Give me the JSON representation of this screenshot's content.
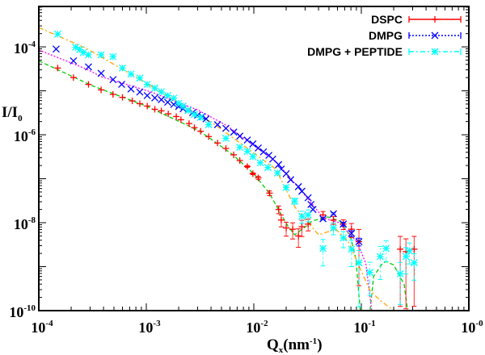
{
  "chart_data": {
    "type": "scatter",
    "title": "",
    "xlabel": {
      "main": "Q",
      "sub": "x",
      "unit_open": "(nm",
      "unit_exp": "-1",
      "unit_close": ")"
    },
    "ylabel": {
      "main": "I/I",
      "sub": "0"
    },
    "xscale": "log",
    "yscale": "log",
    "xlim": [
      0.0001,
      1
    ],
    "ylim": [
      1e-10,
      0.00083
    ],
    "grid": false,
    "legend_position": "top-right",
    "x_ticks": [
      {
        "base": "10",
        "exp": "-4",
        "value": 0.0001
      },
      {
        "base": "10",
        "exp": "-3",
        "value": 0.001
      },
      {
        "base": "10",
        "exp": "-2",
        "value": 0.01
      },
      {
        "base": "10",
        "exp": "-1",
        "value": 0.1
      },
      {
        "base": "10",
        "exp": "-0",
        "value": 1
      }
    ],
    "y_ticks": [
      {
        "base": "10",
        "exp": "-4",
        "value": 0.0001
      },
      {
        "base": "10",
        "exp": "-6",
        "value": 1e-06
      },
      {
        "base": "10",
        "exp": "-8",
        "value": 1e-08
      },
      {
        "base": "10",
        "exp": "-10",
        "value": 1e-10
      }
    ],
    "point_format": "[Q, I, relative_error]",
    "series": [
      {
        "name": "DSPC",
        "color": "#ff0000",
        "marker": "plus",
        "line_style": "solid",
        "points": [
          [
            0.00015,
            3.3e-05,
            0
          ],
          [
            0.00021,
            2e-05,
            0
          ],
          [
            0.00029,
            1.4e-05,
            0
          ],
          [
            0.00038,
            1.05e-05,
            0
          ],
          [
            0.00049,
            8.3e-06,
            0
          ],
          [
            0.0006,
            7.1e-06,
            0
          ],
          [
            0.00074,
            5.9e-06,
            0
          ],
          [
            0.00087,
            5.1e-06,
            0
          ],
          [
            0.00102,
            4.5e-06,
            0
          ],
          [
            0.0012,
            3.8e-06,
            0
          ],
          [
            0.00138,
            3.5e-06,
            0
          ],
          [
            0.0016,
            3e-06,
            0
          ],
          [
            0.0019,
            2.6e-06,
            0
          ],
          [
            0.0021,
            2.2e-06,
            0
          ],
          [
            0.0025,
            1.8e-06,
            0
          ],
          [
            0.0028,
            1.45e-06,
            0
          ],
          [
            0.0032,
            1.2e-06,
            0
          ],
          [
            0.0038,
            9.1e-07,
            0
          ],
          [
            0.0046,
            6.5e-07,
            0
          ],
          [
            0.0055,
            4.9e-07,
            0
          ],
          [
            0.0065,
            3.5e-07,
            0
          ],
          [
            0.0074,
            2.6e-07,
            0
          ],
          [
            0.0087,
            1.9e-07,
            0.05
          ],
          [
            0.0098,
            1.3e-07,
            0.05
          ],
          [
            0.011,
            1.05e-07,
            0.08
          ],
          [
            0.014,
            4.7e-08,
            0.12
          ],
          [
            0.017,
            2e-08,
            0.2
          ],
          [
            0.018,
            1.15e-08,
            0.3
          ],
          [
            0.02,
            7.6e-09,
            0.35
          ],
          [
            0.023,
            7.1e-09,
            0.4
          ],
          [
            0.026,
            5e-09,
            0.45
          ],
          [
            0.028,
            8.1e-09,
            0.4
          ],
          [
            0.032,
            9.3e-09,
            0.3
          ],
          [
            0.044,
            1.5e-08,
            0.2
          ],
          [
            0.055,
            1.15e-08,
            0.2
          ],
          [
            0.068,
            9.3e-09,
            0.25
          ],
          [
            0.081,
            7.1e-09,
            0.35
          ],
          [
            0.095,
            3.7e-09,
            0.9
          ],
          [
            0.23,
            2.5e-09,
            0.95
          ],
          [
            0.26,
            2.2e-09,
            0.95
          ],
          [
            0.31,
            2.5e-09,
            0.95
          ]
        ]
      },
      {
        "name": "DMPG",
        "color": "#0000ff",
        "marker": "cross",
        "line_style": "dotted",
        "points": [
          [
            0.000145,
            8.9e-05,
            0
          ],
          [
            0.00021,
            4.8e-05,
            0
          ],
          [
            0.00029,
            3.5e-05,
            0
          ],
          [
            0.00038,
            2.5e-05,
            0
          ],
          [
            0.00049,
            1.8e-05,
            0
          ],
          [
            0.00059,
            1.4e-05,
            0
          ],
          [
            0.00072,
            1.1e-05,
            0
          ],
          [
            0.00087,
            9.4e-06,
            0
          ],
          [
            0.00102,
            7.8e-06,
            0
          ],
          [
            0.0012,
            6.9e-06,
            0
          ],
          [
            0.00138,
            6.3e-06,
            0
          ],
          [
            0.00158,
            5.5e-06,
            0
          ],
          [
            0.0018,
            4.9e-06,
            0
          ],
          [
            0.002,
            4.4e-06,
            0
          ],
          [
            0.0022,
            3.9e-06,
            0
          ],
          [
            0.00245,
            3.6e-06,
            0
          ],
          [
            0.0027,
            3.2e-06,
            0
          ],
          [
            0.003,
            2.8e-06,
            0
          ],
          [
            0.0033,
            2.6e-06,
            0
          ],
          [
            0.0036,
            2.3e-06,
            0
          ],
          [
            0.0046,
            1.7e-06,
            0
          ],
          [
            0.0055,
            1.4e-06,
            0
          ],
          [
            0.0065,
            1.15e-06,
            0
          ],
          [
            0.0074,
            9.3e-07,
            0
          ],
          [
            0.0087,
            7.6e-07,
            0
          ],
          [
            0.0098,
            6.2e-07,
            0
          ],
          [
            0.011,
            5e-07,
            0
          ],
          [
            0.0123,
            4.1e-07,
            0
          ],
          [
            0.0138,
            3.4e-07,
            0
          ],
          [
            0.015,
            2.8e-07,
            0
          ],
          [
            0.017,
            2.1e-07,
            0
          ],
          [
            0.018,
            1.66e-07,
            0
          ],
          [
            0.02,
            1.3e-07,
            0
          ],
          [
            0.022,
            9.5e-08,
            0
          ],
          [
            0.026,
            6.6e-08,
            0
          ],
          [
            0.028,
            5.2e-08,
            0
          ],
          [
            0.032,
            3.7e-08,
            0
          ],
          [
            0.034,
            2.6e-08,
            0
          ],
          [
            0.0355,
            2e-08,
            0
          ],
          [
            0.044,
            1.23e-08,
            0.05
          ],
          [
            0.055,
            1.6e-08,
            0.05
          ],
          [
            0.068,
            9.3e-09,
            0.1
          ],
          [
            0.081,
            5.7e-09,
            0.15
          ],
          [
            0.095,
            3.7e-09,
            0.2
          ]
        ]
      },
      {
        "name": "DMPG + PEPTIDE",
        "color": "#00ffff",
        "marker": "star",
        "line_style": "dash-dot",
        "points": [
          [
            0.00015,
            0.000195,
            0
          ],
          [
            0.00022,
            9.8e-05,
            0
          ],
          [
            0.00024,
            8.7e-05,
            0
          ],
          [
            0.00026,
            7.4e-05,
            0
          ],
          [
            0.00029,
            6.6e-05,
            0
          ],
          [
            0.00038,
            6.6e-05,
            0
          ],
          [
            0.00049,
            6e-05,
            0
          ],
          [
            0.0006,
            3.3e-05,
            0
          ],
          [
            0.00072,
            2.4e-05,
            0
          ],
          [
            0.00087,
            1.95e-05,
            0
          ],
          [
            0.00102,
            1.4e-05,
            0
          ],
          [
            0.0012,
            1.15e-05,
            0
          ],
          [
            0.00138,
            9.5e-06,
            0
          ],
          [
            0.00158,
            7.8e-06,
            0
          ],
          [
            0.0018,
            6.8e-06,
            0
          ],
          [
            0.002,
            5.2e-06,
            0
          ],
          [
            0.0022,
            4.5e-06,
            0
          ],
          [
            0.00245,
            3.6e-06,
            0
          ],
          [
            0.0028,
            2.9e-06,
            0
          ],
          [
            0.0032,
            2.5e-06,
            0
          ],
          [
            0.0038,
            1.7e-06,
            0
          ],
          [
            0.0055,
            8.3e-07,
            0
          ],
          [
            0.0074,
            5.2e-07,
            0
          ],
          [
            0.0087,
            4.2e-07,
            0
          ],
          [
            0.0098,
            3.2e-07,
            0
          ],
          [
            0.0115,
            2.3e-07,
            0
          ],
          [
            0.0135,
            1.8e-07,
            0
          ],
          [
            0.0166,
            1.35e-07,
            0
          ],
          [
            0.02,
            6.3e-08,
            0.1
          ],
          [
            0.024,
            3.1e-08,
            0.15
          ],
          [
            0.028,
            1.4e-08,
            0.3
          ],
          [
            0.032,
            1.5e-08,
            0.3
          ],
          [
            0.044,
            2.6e-09,
            0.6
          ],
          [
            0.055,
            7.6e-09,
            0.3
          ],
          [
            0.068,
            4.5e-09,
            0.4
          ],
          [
            0.081,
            2.5e-09,
            0.6
          ],
          [
            0.095,
            1.23e-09,
            0.9
          ],
          [
            0.12,
            7.4e-10,
            0.7
          ],
          [
            0.15,
            1.7e-09,
            0.7
          ],
          [
            0.17,
            2.6e-09,
            0.5
          ],
          [
            0.23,
            6.9e-10,
            0.8
          ],
          [
            0.26,
            1.7e-09,
            0.6
          ],
          [
            0.28,
            2.3e-09,
            0.5
          ],
          [
            0.31,
            1.23e-09,
            0.6
          ]
        ]
      }
    ],
    "fits": [
      {
        "color": "#00cc00",
        "line_style": "dashed",
        "points": [
          [
            0.0001,
            4.8e-05
          ],
          [
            0.000316,
            1.3e-05
          ],
          [
            0.001,
            4.5e-06
          ],
          [
            0.00316,
            1.2e-06
          ],
          [
            0.0063,
            3.6e-07
          ],
          [
            0.01,
            1.3e-07
          ],
          [
            0.0141,
            4.5e-08
          ],
          [
            0.0178,
            1.6e-08
          ],
          [
            0.021,
            8e-09
          ],
          [
            0.024,
            5.3e-09
          ],
          [
            0.028,
            7e-09
          ],
          [
            0.035,
            1.1e-08
          ],
          [
            0.049,
            1.35e-08
          ],
          [
            0.063,
            1.1e-08
          ],
          [
            0.079,
            5e-09
          ],
          [
            0.089,
            1.5e-09
          ],
          [
            0.1,
            5e-11
          ],
          [
            0.117,
            5e-11
          ],
          [
            0.13,
            6e-10
          ],
          [
            0.158,
            1.2e-09
          ],
          [
            0.17,
            1.3e-09
          ],
          [
            0.2,
            1.1e-09
          ],
          [
            0.25,
            4e-10
          ],
          [
            0.28,
            5e-11
          ]
        ]
      },
      {
        "color": "#ff00ff",
        "line_style": "dotted",
        "points": [
          [
            0.0001,
            8.5e-05
          ],
          [
            0.00028,
            3.1e-05
          ],
          [
            0.00038,
            2.1e-05
          ],
          [
            0.0011,
            9.5e-06
          ],
          [
            0.0021,
            5.1e-06
          ],
          [
            0.003,
            3.7e-06
          ],
          [
            0.0055,
            1.66e-06
          ],
          [
            0.016,
            2.5e-07
          ],
          [
            0.032,
            3.5e-08
          ],
          [
            0.044,
            1.3e-08
          ],
          [
            0.062,
            1e-08
          ],
          [
            0.091,
            3.7e-09
          ],
          [
            0.11,
            1.2e-09
          ],
          [
            0.125,
            1e-10
          ],
          [
            0.15,
            5e-11
          ]
        ]
      },
      {
        "color": "#ffa500",
        "line_style": "dash-dot",
        "points": [
          [
            0.0001,
            0.000275
          ],
          [
            0.00028,
            9.1e-05
          ],
          [
            0.0011,
            1.3e-05
          ],
          [
            0.0042,
            1.8e-06
          ],
          [
            0.016,
            1.66e-07
          ],
          [
            0.024,
            2.3e-08
          ],
          [
            0.032,
            1e-08
          ],
          [
            0.04,
            5.3e-09
          ],
          [
            0.058,
            7.1e-09
          ],
          [
            0.076,
            3.7e-09
          ],
          [
            0.095,
            1.05e-09
          ],
          [
            0.12,
            2.9e-10
          ],
          [
            0.15,
            1.7e-10
          ],
          [
            0.19,
            1.1e-10
          ],
          [
            0.21,
            5e-11
          ]
        ]
      }
    ]
  }
}
